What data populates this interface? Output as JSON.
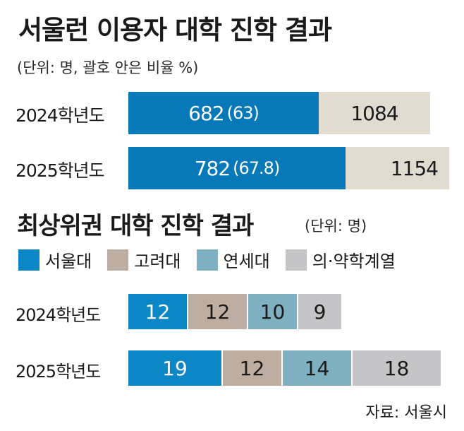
{
  "title": "서울런 이용자 대학 진학 결과",
  "unit": "(단위: 명, 괄호 안은 비율 %)",
  "chart_data": [
    {
      "type": "bar",
      "stacked": true,
      "orientation": "horizontal",
      "title": "서울런 이용자 대학 진학 결과",
      "unit": "(단위: 명, 괄호 안은 비율 %)",
      "categories": [
        "2024학년도",
        "2025학년도"
      ],
      "series": [
        {
          "values": [
            682,
            782
          ],
          "ratio_labels": [
            "(63)",
            "(67.8)"
          ],
          "color": "#0779b8"
        },
        {
          "values": [
            1084,
            1154
          ],
          "color": "#e2dbd0"
        }
      ]
    },
    {
      "type": "bar",
      "stacked": true,
      "orientation": "horizontal",
      "title": "최상위권 대학 진학 결과",
      "unit": "(단위: 명)",
      "categories": [
        "2024학년도",
        "2025학년도"
      ],
      "series": [
        {
          "name": "서울대",
          "values": [
            12,
            19
          ],
          "color": "#0b86c6"
        },
        {
          "name": "고려대",
          "values": [
            12,
            12
          ],
          "color": "#bdaea1"
        },
        {
          "name": "연세대",
          "values": [
            10,
            14
          ],
          "color": "#7fb0c2"
        },
        {
          "name": "의·약학계열",
          "values": [
            9,
            18
          ],
          "color": "#c5c5c7"
        }
      ],
      "legend": "top-left"
    }
  ],
  "source": "자료: 서울시"
}
